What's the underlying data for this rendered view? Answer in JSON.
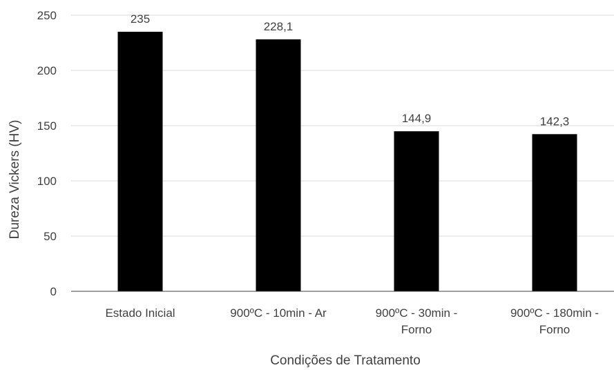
{
  "chart_data": {
    "type": "bar",
    "categories": [
      [
        "Estado Inicial"
      ],
      [
        "900ºC - 10min - Ar"
      ],
      [
        "900ºC - 30min -",
        "Forno"
      ],
      [
        "900ºC - 180min -",
        "Forno"
      ]
    ],
    "values": [
      235,
      228.1,
      144.9,
      142.3
    ],
    "data_labels": [
      "235",
      "228,1",
      "144,9",
      "142,3"
    ],
    "xlabel": "Condições de Tratamento",
    "ylabel": "Dureza Vickers (HV)",
    "ylim": [
      0,
      250
    ],
    "yticks": [
      0,
      50,
      100,
      150,
      200,
      250
    ],
    "grid": true,
    "bar_color": "#000000",
    "grid_color": "#d9d9d9",
    "axis_color": "#404040"
  }
}
